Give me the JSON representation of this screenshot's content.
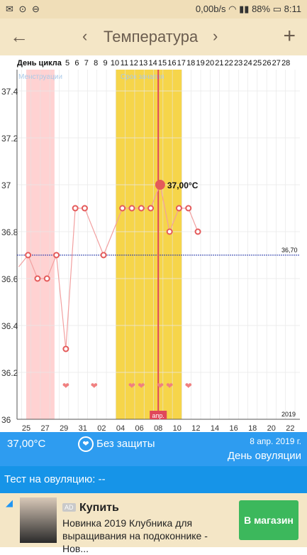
{
  "statusbar": {
    "left_icons": "✉ ⊙ ⊖",
    "network": "0,00b/s",
    "battery": "88%",
    "time": "8:11"
  },
  "appbar": {
    "back_label": "←",
    "prev_label": "‹",
    "title": "Температура",
    "next_label": "›",
    "add_label": "+"
  },
  "chart_data": {
    "type": "line",
    "cycle_header_label": "День цикла",
    "cycle_days": [
      "5",
      "6",
      "7",
      "8",
      "9",
      "10",
      "11",
      "12",
      "13",
      "14",
      "15",
      "16",
      "17",
      "18",
      "19",
      "20",
      "21",
      "22",
      "23",
      "24",
      "25",
      "26",
      "27",
      "28"
    ],
    "x_tick_labels": [
      "25",
      "27",
      "29",
      "31",
      "02",
      "04",
      "06",
      "08",
      "10",
      "12",
      "14",
      "16",
      "18",
      "20",
      "22"
    ],
    "ylim": [
      36.0,
      37.4
    ],
    "y_ticks": [
      "36",
      "36.2",
      "36.4",
      "36.6",
      "36.8",
      "37",
      "37.2",
      "37.4"
    ],
    "menstruation_label": "Менструации",
    "fertile_label": "Срок зачатия",
    "year_label": "2019",
    "selected_label": "апр.",
    "baseline_value": 36.7,
    "baseline_label": "36,70",
    "selected_value_label": "37,00°C",
    "series": [
      {
        "values": [
          36.65,
          36.7,
          36.6,
          36.6,
          36.7,
          36.3,
          36.9,
          36.9,
          null,
          36.7,
          null,
          36.9,
          36.9,
          36.9,
          36.9,
          37.0,
          36.8,
          36.9,
          36.9,
          36.8
        ]
      }
    ],
    "heart_days": [
      5,
      8,
      12,
      13,
      15,
      16,
      18
    ],
    "colors": {
      "menstruation": "#ffd2d2",
      "fertile": "#f6d54a",
      "line": "#f2a0a0",
      "marker": "#e45a5a",
      "selected": "#e0475a"
    }
  },
  "info": {
    "temperature": "37,00°C",
    "protection": "Без защиты",
    "date": "8 апр. 2019 г.",
    "day_status": "День овуляции"
  },
  "test": {
    "label": "Тест на овуляцию: --"
  },
  "ad": {
    "badge": "AD",
    "title": "Купить",
    "description": "Новинка 2019 Клубника для выращивания на подоконнике - Нов...",
    "cta": "В магазин"
  }
}
